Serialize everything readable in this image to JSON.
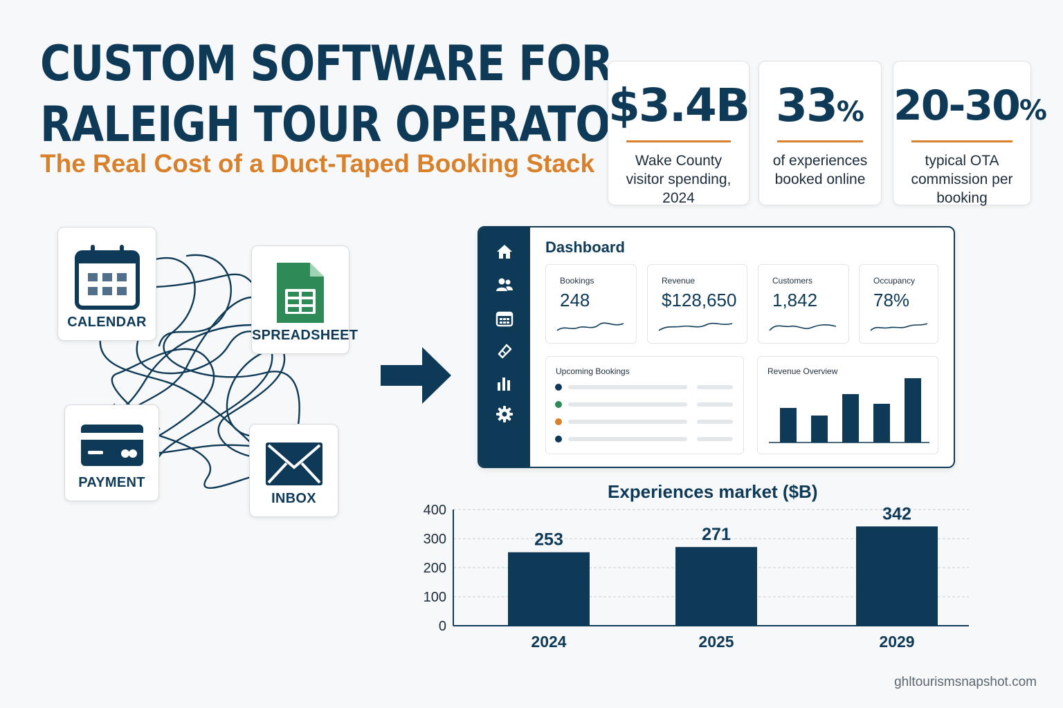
{
  "header": {
    "title_line1": "CUSTOM SOFTWARE FOR",
    "title_line2": "RALEIGH TOUR OPERATORS",
    "subtitle": "The Real Cost of a Duct-Taped Booking Stack"
  },
  "stats": [
    {
      "value": "$3.4B",
      "suffix": "",
      "desc_line1": "Wake County",
      "desc_line2": "visitor spending, 2024"
    },
    {
      "value": "33",
      "suffix": "%",
      "desc_line1": "of experiences",
      "desc_line2": "booked online"
    },
    {
      "value": "20-30",
      "suffix": "%",
      "desc_line1": "typical OTA",
      "desc_line2": "commission per booking"
    }
  ],
  "tools": {
    "calendar": {
      "label": "CALENDAR",
      "icon": "calendar-icon"
    },
    "spreadsheet": {
      "label": "SPREADSHEET",
      "icon": "spreadsheet-icon"
    },
    "payment": {
      "label": "PAYMENT",
      "icon": "credit-card-icon"
    },
    "inbox": {
      "label": "INBOX",
      "icon": "envelope-icon"
    }
  },
  "dashboard": {
    "title": "Dashboard",
    "sidebar_icons": [
      "home-icon",
      "users-icon",
      "calendar-icon",
      "ticket-icon",
      "bar-chart-icon",
      "gear-icon"
    ],
    "kpis": [
      {
        "label": "Bookings",
        "value": "248"
      },
      {
        "label": "Revenue",
        "value": "$128,650"
      },
      {
        "label": "Customers",
        "value": "1,842"
      },
      {
        "label": "Occupancy",
        "value": "78%"
      }
    ],
    "upcoming_label": "Upcoming Bookings",
    "upcoming_dots": [
      "#0e3a57",
      "#2e8b57",
      "#d9812a",
      "#0e3a57"
    ],
    "revenue_label": "Revenue Overview"
  },
  "chart_data": {
    "type": "bar",
    "title": "Experiences market ($B)",
    "categories": [
      "2024",
      "2025",
      "2029"
    ],
    "values": [
      253,
      271,
      342
    ],
    "ylim": [
      0,
      400
    ],
    "yticks": [
      "400",
      "300",
      "200",
      "100",
      "0"
    ],
    "grid": true,
    "bar_color": "#0e3a57"
  },
  "footer": {
    "source": "ghltourismsnapshot.com"
  },
  "colors": {
    "navy": "#0e3a57",
    "orange": "#d9812a",
    "green": "#2e8b57"
  }
}
